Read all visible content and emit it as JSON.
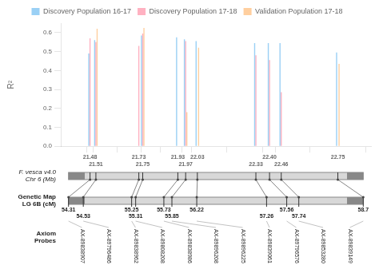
{
  "chart_data": {
    "type": "bar",
    "ylabel": "R²",
    "x": [
      21.48,
      21.51,
      21.73,
      21.75,
      21.93,
      21.97,
      22.03,
      22.33,
      22.4,
      22.46,
      22.75
    ],
    "series": [
      {
        "name": "Discovery Population 16-17",
        "values": [
          0.49,
          0.56,
          null,
          0.585,
          0.575,
          0.565,
          0.555,
          0.545,
          0.545,
          0.545,
          0.495
        ]
      },
      {
        "name": "Discovery Population 17-18",
        "values": [
          0.57,
          0.55,
          0.53,
          0.595,
          null,
          0.555,
          null,
          0.48,
          0.455,
          0.285,
          null
        ]
      },
      {
        "name": "Validation Population 17-18",
        "values": [
          null,
          0.62,
          null,
          0.625,
          null,
          0.18,
          0.52,
          null,
          null,
          null,
          0.435
        ]
      }
    ],
    "xlim": [
      21.33,
      22.92
    ],
    "xticks": [
      21.48,
      21.51,
      21.73,
      21.75,
      21.93,
      21.97,
      22.03,
      22.33,
      {
        "value": 22.4,
        "label": "22.40"
      },
      22.46,
      22.75
    ],
    "ylim": [
      0,
      0.65
    ],
    "yticks": [
      {
        "value": 0,
        "label": "0.0"
      },
      0.1,
      0.2,
      0.3,
      0.4,
      0.5,
      0.6
    ],
    "grid": false,
    "legend": "top",
    "chr_label": "F. vesca v4.0\nChr 6 (Mb)",
    "gmap_label": "Genetic Map\nLG 6B (cM)",
    "probe_label": "Axiom\nProbes",
    "cm": [
      54.31,
      54.53,
      55.25,
      55.31,
      55.73,
      55.85,
      56.22,
      57.26,
      57.56,
      57.74,
      58.7
    ],
    "probes": [
      "AX-89838907",
      "AX-89796486",
      "AX-89838962",
      "AX-89808208",
      "AX-89838986",
      "AX-89896208",
      "AX-89896225",
      "AX-89839061",
      "AX-89796576",
      "AX-89853280",
      "AX-89839149"
    ]
  }
}
